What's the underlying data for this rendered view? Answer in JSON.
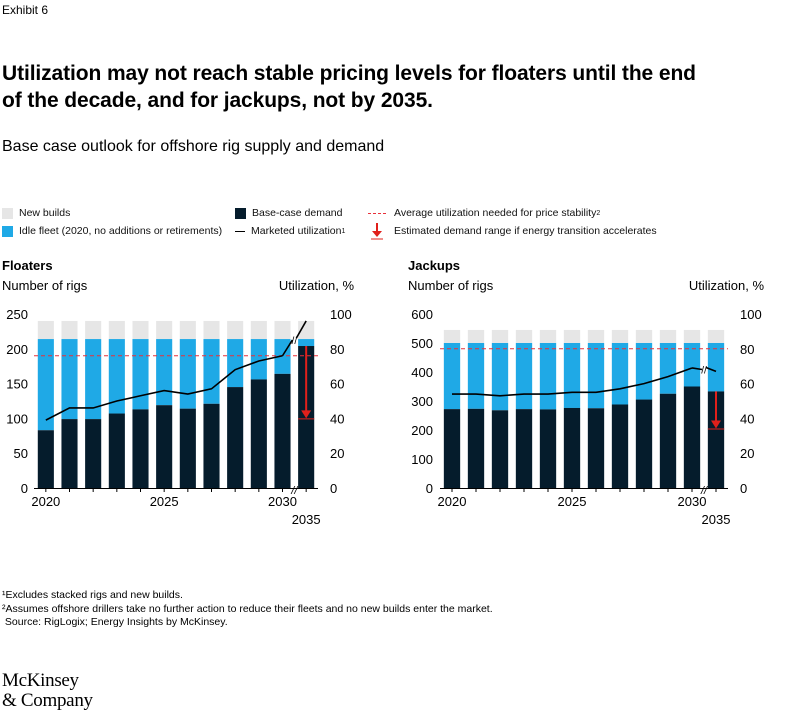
{
  "exhibit": "Exhibit 6",
  "title": "Utilization may not reach stable pricing levels for floaters until the end of the decade, and for jackups, not by 2035.",
  "subtitle": "Base case outlook for offshore rig supply and demand",
  "legend": {
    "new_builds": "New builds",
    "idle_fleet": "Idle fleet (2020, no additions or retirements)",
    "base_case": "Base-case demand",
    "marketed_util": "Marketed utilization",
    "marketed_util_sup": "1",
    "avg_util": "Average utilization needed for price stability",
    "avg_util_sup": "2",
    "demand_range": "Estimated demand range if energy transition accelerates"
  },
  "colors": {
    "new_builds": "#e6e6e6",
    "idle_fleet": "#1fa9e6",
    "base_case": "#051c2c",
    "utilization_line": "#000000",
    "price_stability": "#e8303a",
    "arrow": "#e0201b"
  },
  "chart_data": [
    {
      "type": "bar",
      "title": "Floaters",
      "ylabel": "Number of rigs",
      "y2label": "Utilization, %",
      "ylim": [
        0,
        250
      ],
      "yticks": [
        0,
        50,
        100,
        150,
        200,
        250
      ],
      "y2lim": [
        0,
        100
      ],
      "y2ticks": [
        0,
        20,
        40,
        60,
        80,
        100
      ],
      "categories": [
        "2020",
        "2021",
        "2022",
        "2023",
        "2024",
        "2025",
        "2026",
        "2027",
        "2028",
        "2029",
        "2030",
        "2035"
      ],
      "xtick_labels": [
        "2020",
        "2025",
        "2030",
        "2035"
      ],
      "axis_break": "//",
      "series": [
        {
          "name": "Base-case demand",
          "values": [
            83,
            99,
            99,
            107,
            113,
            119,
            114,
            121,
            145,
            156,
            164,
            204
          ]
        },
        {
          "name": "Idle fleet (2020, no additions or retirements)",
          "total_values": [
            214,
            214,
            214,
            214,
            214,
            214,
            214,
            214,
            214,
            214,
            214,
            214
          ]
        },
        {
          "name": "New builds",
          "total_values": [
            240,
            240,
            240,
            240,
            240,
            240,
            240,
            240,
            240,
            240,
            240,
            240
          ]
        },
        {
          "name": "Marketed utilization",
          "axis": "right",
          "values": [
            39,
            46,
            46,
            50,
            53,
            56,
            54,
            57,
            68,
            73,
            76,
            96
          ]
        }
      ],
      "price_stability_pct": 76,
      "demand_range_2035": [
        204,
        100
      ]
    },
    {
      "type": "bar",
      "title": "Jackups",
      "ylabel": "Number of rigs",
      "y2label": "Utilization, %",
      "ylim": [
        0,
        600
      ],
      "yticks": [
        0,
        100,
        200,
        300,
        400,
        500,
        600
      ],
      "y2lim": [
        0,
        100
      ],
      "y2ticks": [
        0,
        20,
        40,
        60,
        80,
        100
      ],
      "categories": [
        "2020",
        "2021",
        "2022",
        "2023",
        "2024",
        "2025",
        "2026",
        "2027",
        "2028",
        "2029",
        "2030",
        "2035"
      ],
      "xtick_labels": [
        "2020",
        "2025",
        "2030",
        "2035"
      ],
      "axis_break": "//",
      "series": [
        {
          "name": "Base-case demand",
          "values": [
            272,
            273,
            268,
            272,
            271,
            276,
            275,
            288,
            305,
            325,
            350,
            333
          ]
        },
        {
          "name": "Idle fleet (2020, no additions or retirements)",
          "total_values": [
            500,
            500,
            500,
            500,
            500,
            500,
            500,
            500,
            500,
            500,
            500,
            500
          ]
        },
        {
          "name": "New builds",
          "total_values": [
            545,
            545,
            545,
            545,
            545,
            545,
            545,
            545,
            545,
            545,
            545,
            545
          ]
        },
        {
          "name": "Marketed utilization",
          "axis": "right",
          "values": [
            54,
            54,
            53,
            54,
            54,
            55,
            55,
            57,
            60,
            64,
            69,
            67
          ]
        }
      ],
      "price_stability_pct": 80,
      "demand_range_2035": [
        333,
        205
      ]
    }
  ],
  "footnotes": [
    "¹Excludes stacked rigs and new builds.",
    "²Assumes offshore drillers take no further action to reduce their fleets and no new builds enter the market.",
    " Source: RigLogix; Energy Insights by McKinsey."
  ],
  "logo": [
    "McKinsey",
    "& Company"
  ]
}
